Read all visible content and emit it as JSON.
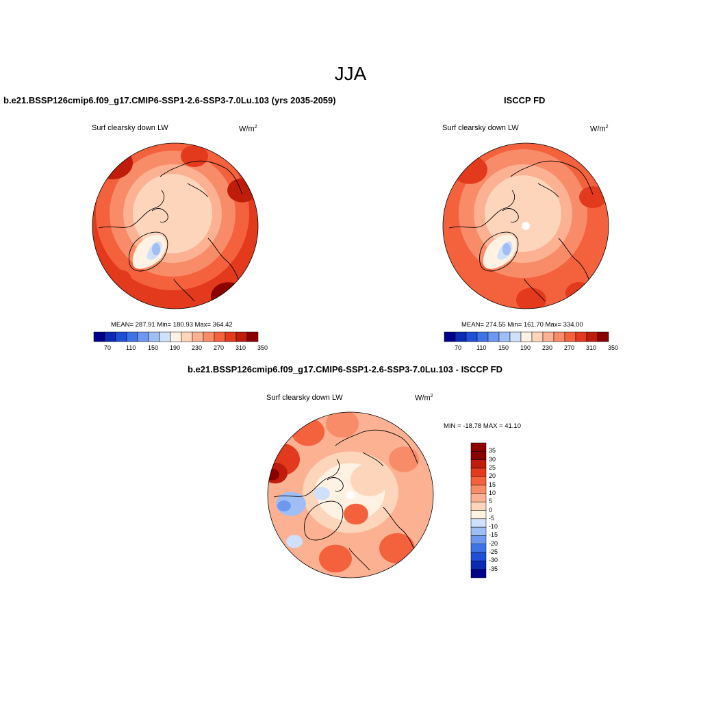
{
  "main_title": "JJA",
  "colors": {
    "levels": [
      "#00008b",
      "#0b2bb5",
      "#1f4fd6",
      "#3e73e6",
      "#6e98ef",
      "#9fbef5",
      "#cfe0fa",
      "#fff2e2",
      "#fdd5bb",
      "#fcb192",
      "#f98c68",
      "#f4623d",
      "#e33a1d",
      "#bf1c0c",
      "#8c0000"
    ],
    "land_outline": "#000000"
  },
  "panels": {
    "model": {
      "title": "b.e21.BSSP126cmip6.f09_g17.CMIP6-SSP1-2.6-SSP3-7.0Lu.103 (yrs 2035-2059)",
      "variable": "Surf clearsky down LW",
      "units_base": "W/m",
      "units_exp": "2",
      "stats": "MEAN= 287.91  Min= 180.93  Max= 364.42",
      "colorbar_ticks": [
        "70",
        "110",
        "150",
        "190",
        "230",
        "270",
        "310",
        "350"
      ]
    },
    "obs": {
      "title": "ISCCP FD",
      "variable": "Surf clearsky down LW",
      "units_base": "W/m",
      "units_exp": "2",
      "stats": "MEAN= 274.55  Min= 161.70  Max= 334.00",
      "colorbar_ticks": [
        "70",
        "110",
        "150",
        "190",
        "230",
        "270",
        "310",
        "350"
      ]
    },
    "diff": {
      "title": "b.e21.BSSP126cmip6.f09_g17.CMIP6-SSP1-2.6-SSP3-7.0Lu.103 - ISCCP FD",
      "variable": "Surf clearsky down LW",
      "units_base": "W/m",
      "units_exp": "2",
      "stats": "MIN = -18.78 MAX =  41.10",
      "colorbar_ticks": [
        "35",
        "30",
        "25",
        "20",
        "15",
        "10",
        "5",
        "0",
        "-5",
        "-10",
        "-15",
        "-20",
        "-25",
        "-30",
        "-35"
      ]
    }
  }
}
